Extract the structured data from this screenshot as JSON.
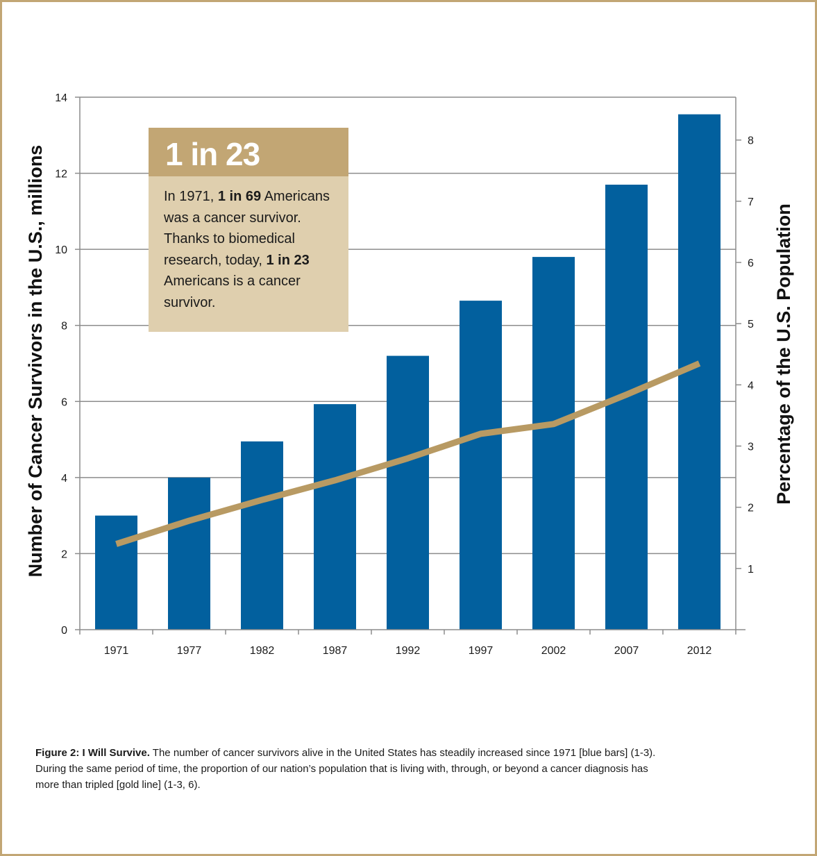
{
  "chart_data": {
    "type": "bar+line",
    "categories": [
      "1971",
      "1977",
      "1982",
      "1987",
      "1992",
      "1997",
      "2002",
      "2007",
      "2012"
    ],
    "series": [
      {
        "chart_type": "bar",
        "axis": "left",
        "color": "#02609e",
        "values": [
          3.0,
          4.0,
          4.95,
          5.93,
          7.2,
          8.65,
          9.8,
          11.7,
          13.55
        ]
      },
      {
        "chart_type": "line",
        "axis": "right",
        "color": "#b89a63",
        "values": [
          1.4,
          1.78,
          2.12,
          2.44,
          2.8,
          3.2,
          3.36,
          3.84,
          4.35
        ]
      }
    ],
    "ylabel_left": "Number of Cancer Survivors in the U.S., millions",
    "ylabel_right": "Percentage of the U.S. Population",
    "ylim_left": [
      0,
      14
    ],
    "yticks_left": [
      "0",
      "2",
      "4",
      "6",
      "8",
      "10",
      "12",
      "14"
    ],
    "ylim_right": [
      0,
      8.7
    ],
    "yticks_right": [
      "1",
      "2",
      "3",
      "4",
      "5",
      "6",
      "7",
      "8"
    ],
    "grid": true,
    "legend": "none"
  },
  "callout": {
    "title": "1 in 23",
    "parts": [
      {
        "text": "In 1971, ",
        "bold": false
      },
      {
        "text": "1 in 69",
        "bold": true
      },
      {
        "text": " Americans was a cancer survivor. Thanks to biomedical research, today, ",
        "bold": false
      },
      {
        "text": "1 in 23",
        "bold": true
      },
      {
        "text": " Americans is a cancer survivor.",
        "bold": false
      }
    ]
  },
  "caption": {
    "title": "Figure 2: I Will Survive.",
    "text": " The number of cancer survivors alive in the United States has steadily increased since 1971 [blue bars] (1-3). During the same period of time, the proportion of our nation’s population that is living with, through, or beyond a cancer diagnosis has more than tripled [gold line] (1-3, 6)."
  },
  "colors": {
    "frame": "#c2a674",
    "bar": "#02609e",
    "line": "#b89a63",
    "callout_header": "#c2a674",
    "callout_body": "#dfcfae"
  }
}
